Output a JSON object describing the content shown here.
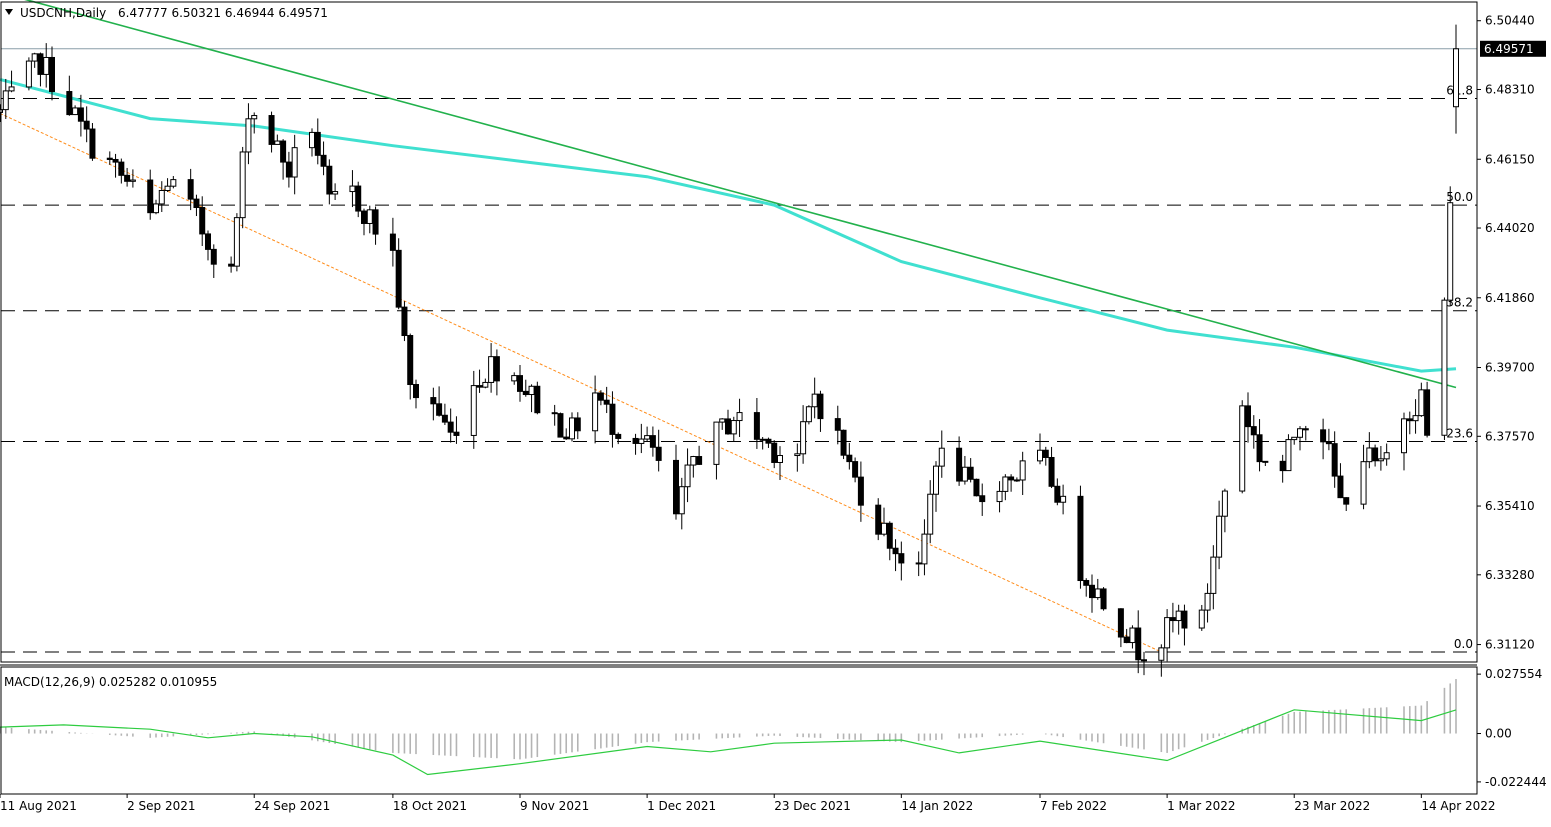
{
  "chart_data": {
    "type": "candlestick",
    "header": {
      "symbol_timeframe": "USDCNH,Daily",
      "ohlc": "6.47777 6.50321 6.46944 6.49571"
    },
    "price_axis_labels": [
      "6.50440",
      "6.48310",
      "6.46150",
      "6.44020",
      "6.41860",
      "6.39700",
      "6.37570",
      "6.35410",
      "6.33280",
      "6.31120"
    ],
    "price_axis_values": [
      6.5044,
      6.4831,
      6.4615,
      6.4402,
      6.4186,
      6.397,
      6.3757,
      6.3541,
      6.3328,
      6.3112
    ],
    "current_price": "6.49571",
    "current_price_value": 6.49571,
    "ylim": [
      6.3058,
      6.5102
    ],
    "fibonacci": [
      {
        "label": "61.8",
        "value": 6.4803
      },
      {
        "label": "50.0",
        "value": 6.4473
      },
      {
        "label": "38.2",
        "value": 6.4146
      },
      {
        "label": "23.6",
        "value": 6.3741
      },
      {
        "label": "0.0",
        "value": 6.3089
      }
    ],
    "x_labels": [
      "11 Aug 2021",
      "2 Sep 2021",
      "24 Sep 2021",
      "18 Oct 2021",
      "9 Nov 2021",
      "1 Dec 2021",
      "23 Dec 2021",
      "14 Jan 2022",
      "7 Feb 2022",
      "1 Mar 2022",
      "23 Mar 2022",
      "14 Apr 2022"
    ],
    "x_label_dates": [
      "2021-08-11",
      "2021-09-02",
      "2021-09-24",
      "2021-10-18",
      "2021-11-09",
      "2021-12-01",
      "2021-12-23",
      "2022-01-14",
      "2022-02-07",
      "2022-03-01",
      "2022-03-23",
      "2022-04-14"
    ],
    "x_range_dates": [
      "2021-08-11",
      "2022-04-20"
    ],
    "close_path": [
      {
        "date": "2021-08-11",
        "close": 6.476
      },
      {
        "date": "2021-08-18",
        "close": 6.492
      },
      {
        "date": "2021-08-23",
        "close": 6.478
      },
      {
        "date": "2021-08-26",
        "close": 6.468
      },
      {
        "date": "2021-08-31",
        "close": 6.458
      },
      {
        "date": "2021-09-03",
        "close": 6.452
      },
      {
        "date": "2021-09-06",
        "close": 6.443
      },
      {
        "date": "2021-09-09",
        "close": 6.455
      },
      {
        "date": "2021-09-13",
        "close": 6.446
      },
      {
        "date": "2021-09-16",
        "close": 6.436
      },
      {
        "date": "2021-09-20",
        "close": 6.426
      },
      {
        "date": "2021-09-23",
        "close": 6.478
      },
      {
        "date": "2021-09-27",
        "close": 6.468
      },
      {
        "date": "2021-09-30",
        "close": 6.458
      },
      {
        "date": "2021-10-04",
        "close": 6.472
      },
      {
        "date": "2021-10-07",
        "close": 6.447
      },
      {
        "date": "2021-10-11",
        "close": 6.451
      },
      {
        "date": "2021-10-14",
        "close": 6.443
      },
      {
        "date": "2021-10-18",
        "close": 6.432
      },
      {
        "date": "2021-10-21",
        "close": 6.39
      },
      {
        "date": "2021-10-25",
        "close": 6.386
      },
      {
        "date": "2021-10-28",
        "close": 6.376
      },
      {
        "date": "2021-11-01",
        "close": 6.392
      },
      {
        "date": "2021-11-04",
        "close": 6.398
      },
      {
        "date": "2021-11-08",
        "close": 6.395
      },
      {
        "date": "2021-11-11",
        "close": 6.388
      },
      {
        "date": "2021-11-15",
        "close": 6.381
      },
      {
        "date": "2021-11-18",
        "close": 6.377
      },
      {
        "date": "2021-11-22",
        "close": 6.389
      },
      {
        "date": "2021-11-25",
        "close": 6.38
      },
      {
        "date": "2021-11-29",
        "close": 6.376
      },
      {
        "date": "2021-12-02",
        "close": 6.371
      },
      {
        "date": "2021-12-06",
        "close": 6.35
      },
      {
        "date": "2021-12-09",
        "close": 6.369
      },
      {
        "date": "2021-12-13",
        "close": 6.376
      },
      {
        "date": "2021-12-16",
        "close": 6.382
      },
      {
        "date": "2021-12-20",
        "close": 6.376
      },
      {
        "date": "2021-12-23",
        "close": 6.372
      },
      {
        "date": "2021-12-27",
        "close": 6.37
      },
      {
        "date": "2021-12-30",
        "close": 6.389
      },
      {
        "date": "2022-01-03",
        "close": 6.375
      },
      {
        "date": "2022-01-06",
        "close": 6.362
      },
      {
        "date": "2022-01-10",
        "close": 6.349
      },
      {
        "date": "2022-01-13",
        "close": 6.341
      },
      {
        "date": "2022-01-17",
        "close": 6.332
      },
      {
        "date": "2022-01-20",
        "close": 6.37
      },
      {
        "date": "2022-01-24",
        "close": 6.365
      },
      {
        "date": "2022-01-27",
        "close": 6.355
      },
      {
        "date": "2022-01-31",
        "close": 6.362
      },
      {
        "date": "2022-02-03",
        "close": 6.364
      },
      {
        "date": "2022-02-07",
        "close": 6.368
      },
      {
        "date": "2022-02-10",
        "close": 6.359
      },
      {
        "date": "2022-02-14",
        "close": 6.335
      },
      {
        "date": "2022-02-17",
        "close": 6.327
      },
      {
        "date": "2022-02-21",
        "close": 6.318
      },
      {
        "date": "2022-02-24",
        "close": 6.31
      },
      {
        "date": "2022-02-28",
        "close": 6.313
      },
      {
        "date": "2022-03-03",
        "close": 6.32
      },
      {
        "date": "2022-03-07",
        "close": 6.318
      },
      {
        "date": "2022-03-10",
        "close": 6.35
      },
      {
        "date": "2022-03-14",
        "close": 6.386
      },
      {
        "date": "2022-03-17",
        "close": 6.37
      },
      {
        "date": "2022-03-21",
        "close": 6.365
      },
      {
        "date": "2022-03-24",
        "close": 6.382
      },
      {
        "date": "2022-03-28",
        "close": 6.377
      },
      {
        "date": "2022-03-31",
        "close": 6.355
      },
      {
        "date": "2022-04-04",
        "close": 6.37
      },
      {
        "date": "2022-04-07",
        "close": 6.365
      },
      {
        "date": "2022-04-11",
        "close": 6.383
      },
      {
        "date": "2022-04-14",
        "close": 6.388
      },
      {
        "date": "2022-04-15",
        "close": 6.375
      },
      {
        "date": "2022-04-18",
        "close": 6.418
      },
      {
        "date": "2022-04-19",
        "close": 6.445
      },
      {
        "date": "2022-04-20",
        "close": 6.49571
      }
    ],
    "moving_average": [
      {
        "date": "2021-08-11",
        "value": 6.4862
      },
      {
        "date": "2021-09-06",
        "value": 6.4741
      },
      {
        "date": "2021-09-24",
        "value": 6.4718
      },
      {
        "date": "2021-10-18",
        "value": 6.4657
      },
      {
        "date": "2021-11-09",
        "value": 6.4609
      },
      {
        "date": "2021-12-01",
        "value": 6.4561
      },
      {
        "date": "2021-12-23",
        "value": 6.4473
      },
      {
        "date": "2022-01-14",
        "value": 6.4298
      },
      {
        "date": "2022-02-07",
        "value": 6.4186
      },
      {
        "date": "2022-03-01",
        "value": 6.4086
      },
      {
        "date": "2022-03-23",
        "value": 6.4033
      },
      {
        "date": "2022-04-14",
        "value": 6.3959
      },
      {
        "date": "2022-04-20",
        "value": 6.3966
      }
    ],
    "downtrend_line": [
      {
        "date": "2021-08-11",
        "value": 6.5131
      },
      {
        "date": "2022-04-20",
        "value": 6.3908
      }
    ],
    "support_line": [
      {
        "date": "2021-08-11",
        "value": 6.4757
      },
      {
        "date": "2022-02-28",
        "value": 6.3089
      }
    ],
    "macd": {
      "label": "MACD(12,26,9) 0.025282 0.010955",
      "axis_labels": [
        "0.027554",
        "0.00",
        "-0.022444"
      ],
      "axis_values": [
        0.027554,
        0.0,
        -0.022444
      ],
      "ylim": [
        -0.0262,
        0.0304
      ],
      "main_values": [
        {
          "date": "2021-08-11",
          "value": 0.003
        },
        {
          "date": "2021-09-06",
          "value": -0.002
        },
        {
          "date": "2021-09-24",
          "value": 0.001
        },
        {
          "date": "2021-10-18",
          "value": -0.009
        },
        {
          "date": "2021-11-09",
          "value": -0.012
        },
        {
          "date": "2021-12-01",
          "value": -0.004
        },
        {
          "date": "2021-12-23",
          "value": -0.001
        },
        {
          "date": "2022-01-14",
          "value": -0.004
        },
        {
          "date": "2022-02-07",
          "value": 0.0
        },
        {
          "date": "2022-03-01",
          "value": -0.009
        },
        {
          "date": "2022-03-23",
          "value": 0.01
        },
        {
          "date": "2022-04-14",
          "value": 0.013
        },
        {
          "date": "2022-04-20",
          "value": 0.025282
        }
      ],
      "signal_values": [
        {
          "date": "2021-08-11",
          "value": 0.003
        },
        {
          "date": "2021-08-22",
          "value": 0.004
        },
        {
          "date": "2021-09-06",
          "value": 0.002
        },
        {
          "date": "2021-09-16",
          "value": -0.002
        },
        {
          "date": "2021-09-24",
          "value": 0.0
        },
        {
          "date": "2021-10-04",
          "value": -0.0015
        },
        {
          "date": "2021-10-18",
          "value": -0.01
        },
        {
          "date": "2021-10-24",
          "value": -0.019
        },
        {
          "date": "2021-11-09",
          "value": -0.014
        },
        {
          "date": "2021-12-01",
          "value": -0.006
        },
        {
          "date": "2021-12-12",
          "value": -0.0085
        },
        {
          "date": "2021-12-23",
          "value": -0.0045
        },
        {
          "date": "2022-01-14",
          "value": -0.003
        },
        {
          "date": "2022-01-24",
          "value": -0.009
        },
        {
          "date": "2022-02-07",
          "value": -0.0035
        },
        {
          "date": "2022-03-01",
          "value": -0.0125
        },
        {
          "date": "2022-03-23",
          "value": 0.011
        },
        {
          "date": "2022-04-14",
          "value": 0.006
        },
        {
          "date": "2022-04-20",
          "value": 0.010955
        }
      ]
    },
    "colors": {
      "background": "#ffffff",
      "candle": "#000000",
      "moving_average": "#40e0d0",
      "trend_line": "#22b14c",
      "support_line": "#ff8c1a",
      "macd_signal": "#2ecc40",
      "macd_histogram": "#b4b4b4",
      "current_price_tag": "#000000",
      "current_price_text": "#ffffff"
    }
  }
}
